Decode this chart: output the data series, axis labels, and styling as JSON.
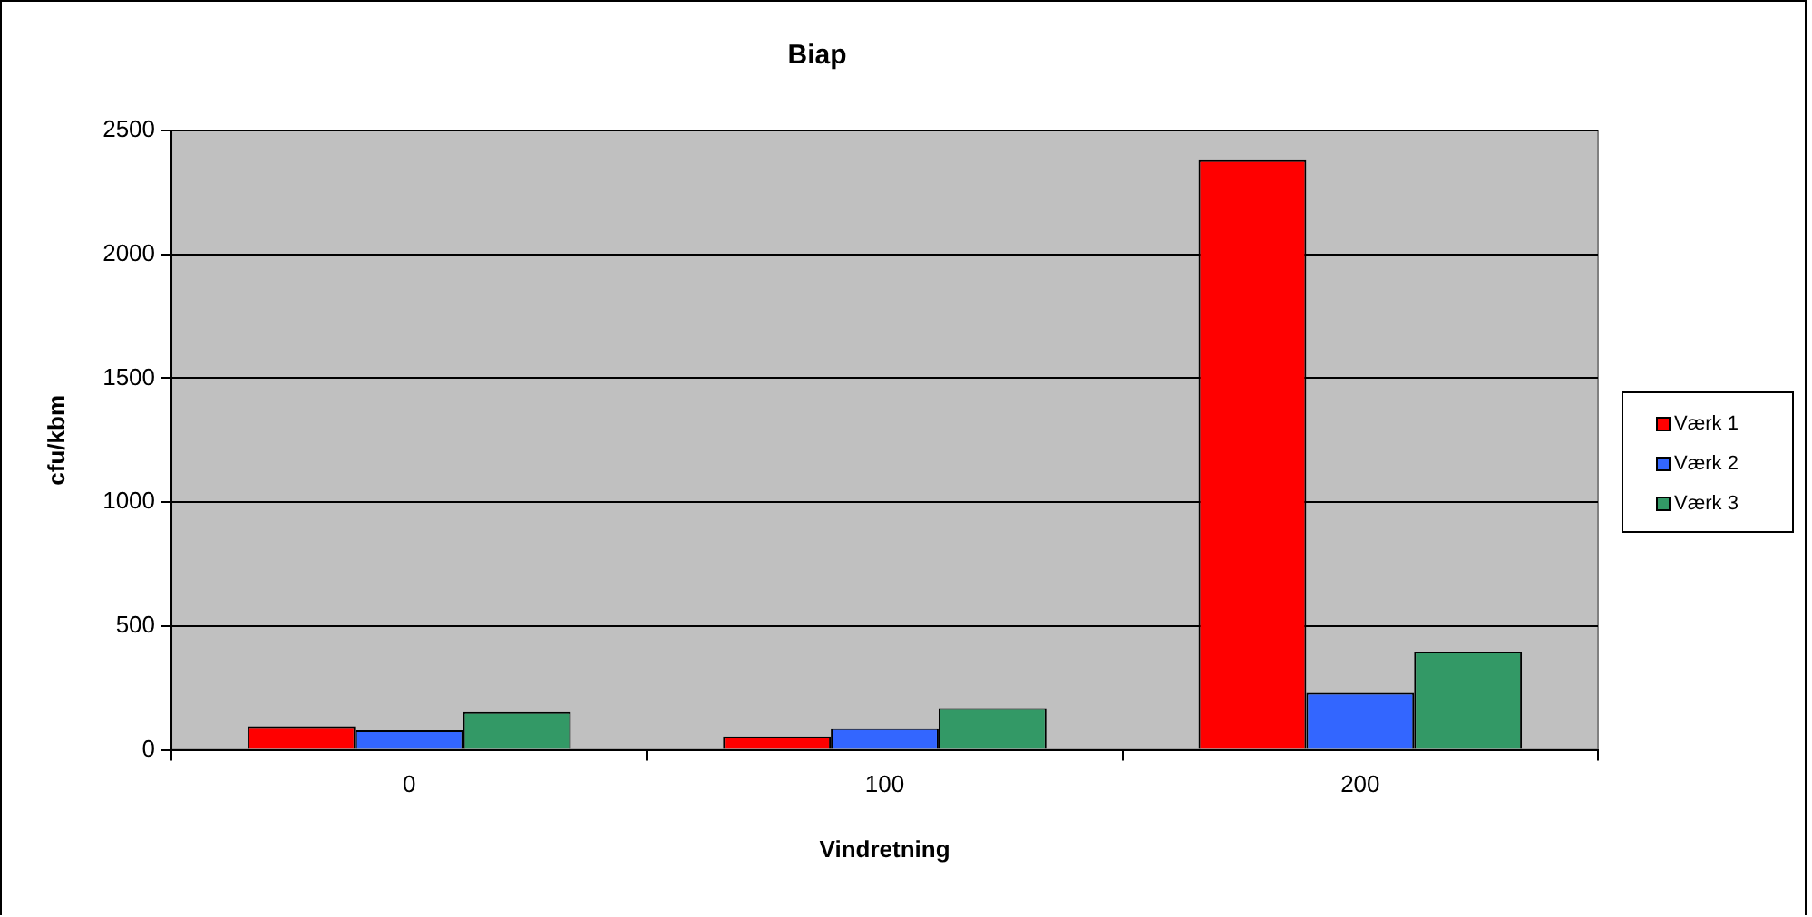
{
  "chart_data": {
    "type": "bar",
    "title": "Biap",
    "xlabel": "Vindretning",
    "ylabel": "cfu/kbm",
    "categories": [
      "0",
      "100",
      "200"
    ],
    "series": [
      {
        "name": "Værk 1",
        "color": "#ff0000",
        "values": [
          95,
          54,
          2380
        ]
      },
      {
        "name": "Værk 2",
        "color": "#3366ff",
        "values": [
          79,
          87,
          231
        ]
      },
      {
        "name": "Værk 3",
        "color": "#339966",
        "values": [
          153,
          169,
          397
        ]
      }
    ],
    "ylim": [
      0,
      2500
    ],
    "yticks": [
      0,
      500,
      1000,
      1500,
      2000,
      2500
    ],
    "grid": "y",
    "legend": "right"
  }
}
